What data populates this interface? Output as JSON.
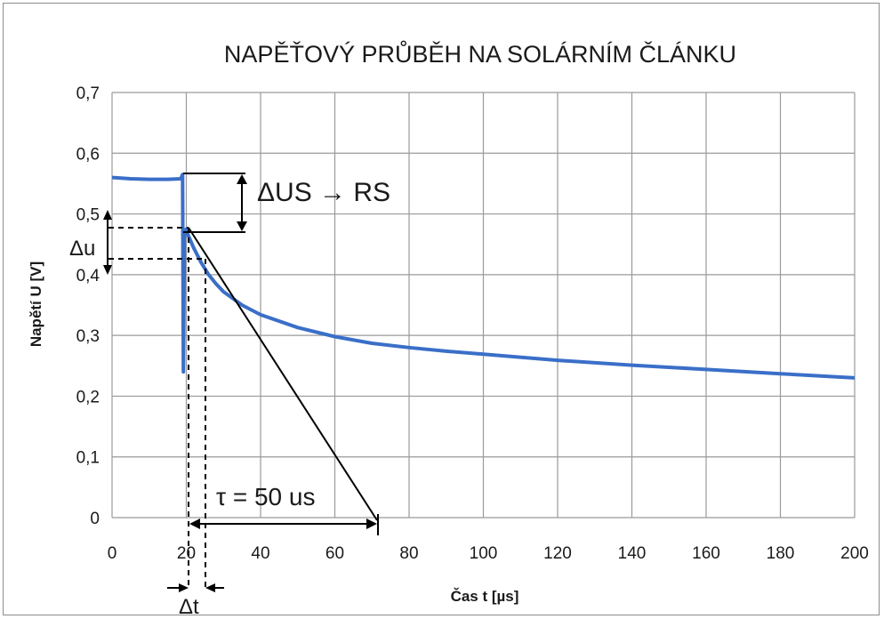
{
  "chart_data": {
    "type": "line",
    "title": "NAPĚŤOVÝ PRŮBĚH  NA SOLÁRNÍM ČLÁNKU",
    "xlabel": "Čas  t [µs]",
    "ylabel": "Napětí U [V]",
    "xlim": [
      0,
      200
    ],
    "ylim": [
      0,
      0.7
    ],
    "x_ticks": [
      0,
      20,
      40,
      60,
      80,
      100,
      120,
      140,
      160,
      180,
      200
    ],
    "y_ticks": [
      0,
      0.1,
      0.2,
      0.3,
      0.4,
      0.5,
      0.6,
      0.7
    ],
    "x_tick_labels": [
      "0",
      "20",
      "40",
      "60",
      "80",
      "100",
      "120",
      "140",
      "160",
      "180",
      "200"
    ],
    "y_tick_labels": [
      "0",
      "0,1",
      "0,2",
      "0,3",
      "0,4",
      "0,5",
      "0,6",
      "0,7"
    ],
    "grid": true,
    "series": [
      {
        "color": "#3a6fc8",
        "x": [
          0,
          5,
          10,
          15,
          18.5,
          19.0,
          19.2,
          19.5,
          20.0,
          20.5,
          21.0,
          22.0,
          24.0,
          26.0,
          28.0,
          30.0,
          35.0,
          40.0,
          50.0,
          60.0,
          70.0,
          80.0,
          90.0,
          100.0,
          120.0,
          140.0,
          160.0,
          180.0,
          200.0
        ],
        "y": [
          0.56,
          0.558,
          0.557,
          0.557,
          0.558,
          0.565,
          0.24,
          0.47,
          0.475,
          0.465,
          0.458,
          0.444,
          0.42,
          0.4,
          0.385,
          0.372,
          0.35,
          0.334,
          0.313,
          0.298,
          0.287,
          0.28,
          0.274,
          0.269,
          0.259,
          0.251,
          0.244,
          0.237,
          0.23
        ]
      }
    ],
    "annotations": {
      "delta_us": "ΔUS → RS",
      "delta_u": "Δu",
      "tau": "τ = 50 us",
      "delta_t": "Δt"
    }
  }
}
